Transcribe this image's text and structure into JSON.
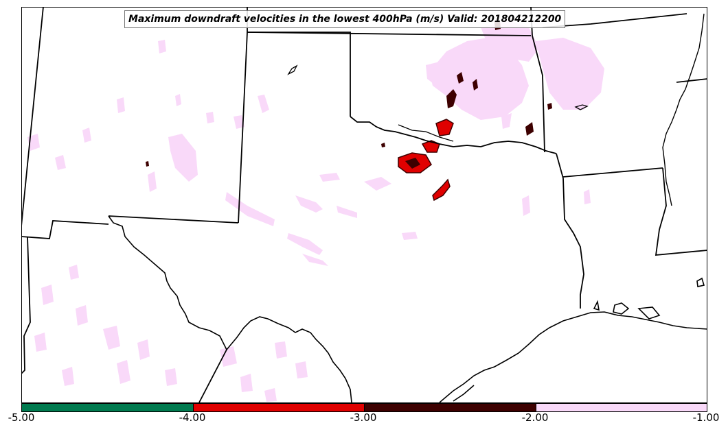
{
  "title": "Maximum downdraft velocities in the lowest 400hPa (m/s) Valid: 201804212200",
  "colorbar": {
    "ticks": [
      "-5.00",
      "-4.00",
      "-3.00",
      "-2.00",
      "-1.00"
    ],
    "segments": [
      {
        "from": -5.0,
        "to": -4.0,
        "color": "#007a4f"
      },
      {
        "from": -4.0,
        "to": -3.0,
        "color": "#e00000"
      },
      {
        "from": -3.0,
        "to": -2.0,
        "color": "#3d0000"
      },
      {
        "from": -2.0,
        "to": -1.0,
        "color": "#f9d9f9"
      }
    ]
  },
  "colors": {
    "weak": "#f9d9f9",
    "moderate": "#3d0000",
    "strong": "#e00000",
    "border": "#000000"
  },
  "map": {
    "region": "Southern Plains / Texas and surrounding states",
    "features": [
      "state-borders",
      "coastline",
      "downdraft-contours"
    ]
  }
}
